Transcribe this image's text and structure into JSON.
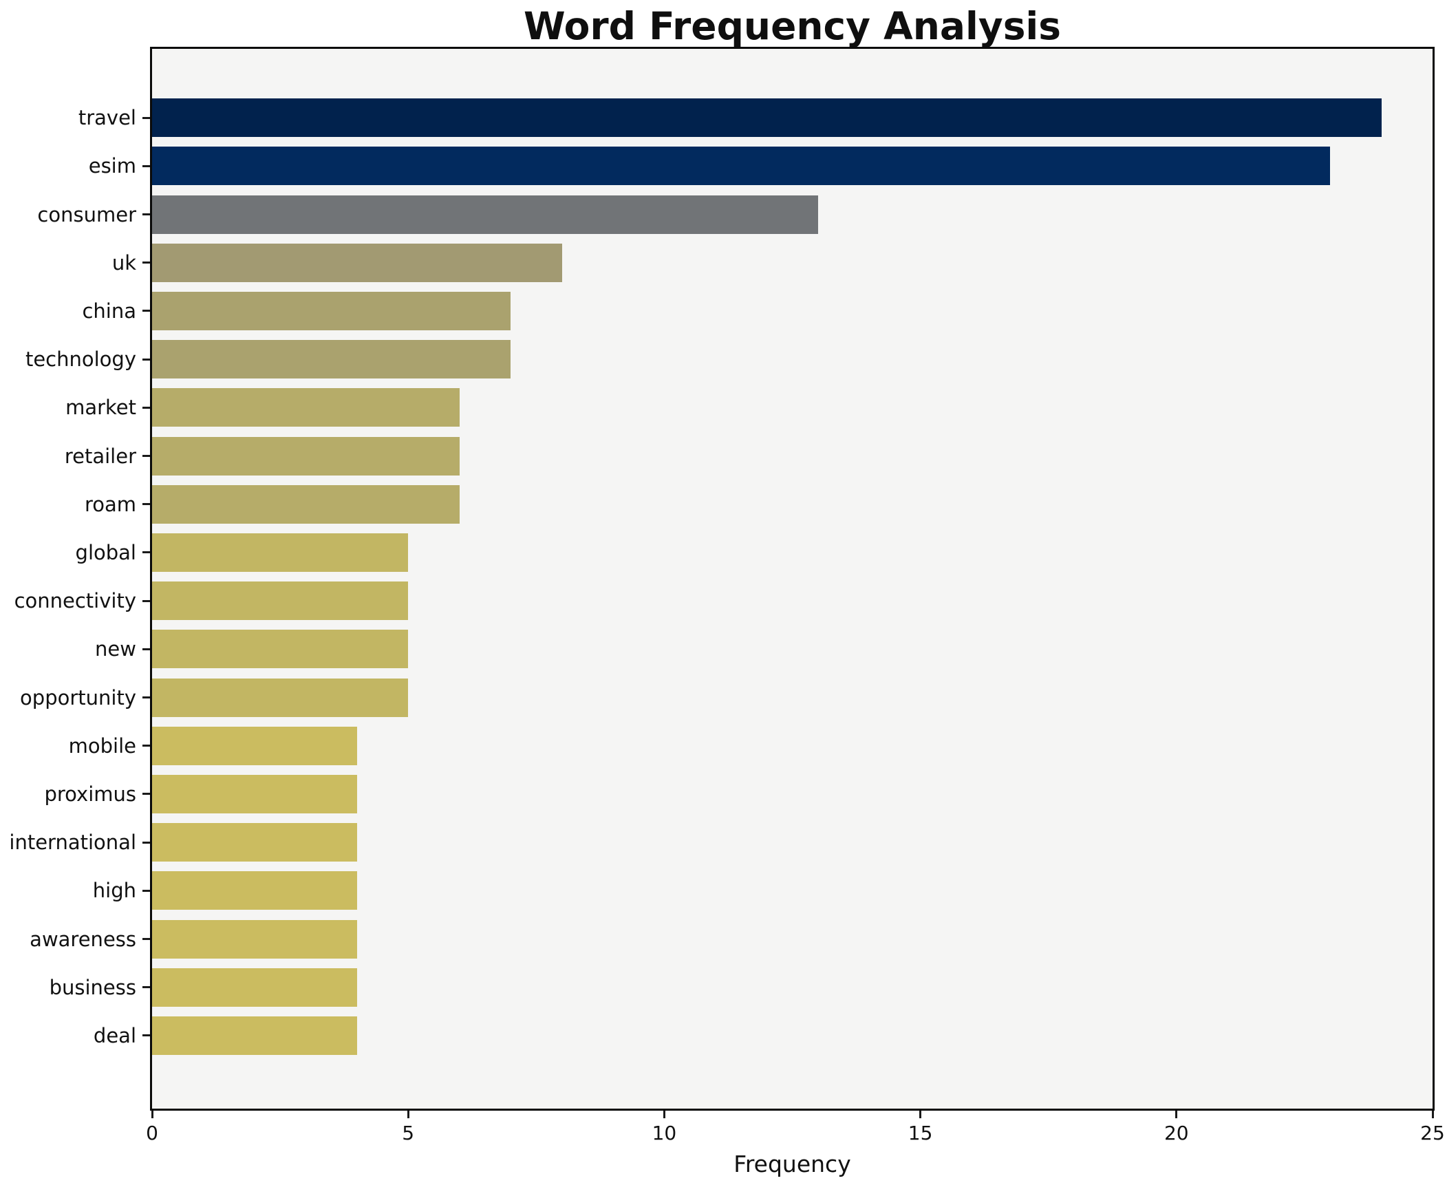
{
  "chart_data": {
    "type": "bar",
    "orientation": "horizontal",
    "title": "Word Frequency Analysis",
    "xlabel": "Frequency",
    "ylabel": "",
    "xlim": [
      0,
      25
    ],
    "xticks": [
      0,
      5,
      10,
      15,
      20,
      25
    ],
    "grid": false,
    "legend": "none",
    "plot_background": "#f5f5f4",
    "figure_background": "#ffffff",
    "categories": [
      "travel",
      "esim",
      "consumer",
      "uk",
      "china",
      "technology",
      "market",
      "retailer",
      "roam",
      "global",
      "connectivity",
      "new",
      "opportunity",
      "mobile",
      "proximus",
      "international",
      "high",
      "awareness",
      "business",
      "deal"
    ],
    "values": [
      24,
      23,
      13,
      8,
      7,
      7,
      6,
      6,
      6,
      5,
      5,
      5,
      5,
      4,
      4,
      4,
      4,
      4,
      4,
      4
    ],
    "bar_colors": [
      "#01224d",
      "#022a5e",
      "#717477",
      "#a29a72",
      "#aaa26e",
      "#aaa26e",
      "#b6ac69",
      "#b6ac69",
      "#b6ac69",
      "#c2b663",
      "#c2b663",
      "#c2b663",
      "#c2b663",
      "#cbbc60",
      "#cbbc60",
      "#cbbc60",
      "#cbbc60",
      "#cbbc60",
      "#cbbc60",
      "#cbbc60"
    ]
  }
}
